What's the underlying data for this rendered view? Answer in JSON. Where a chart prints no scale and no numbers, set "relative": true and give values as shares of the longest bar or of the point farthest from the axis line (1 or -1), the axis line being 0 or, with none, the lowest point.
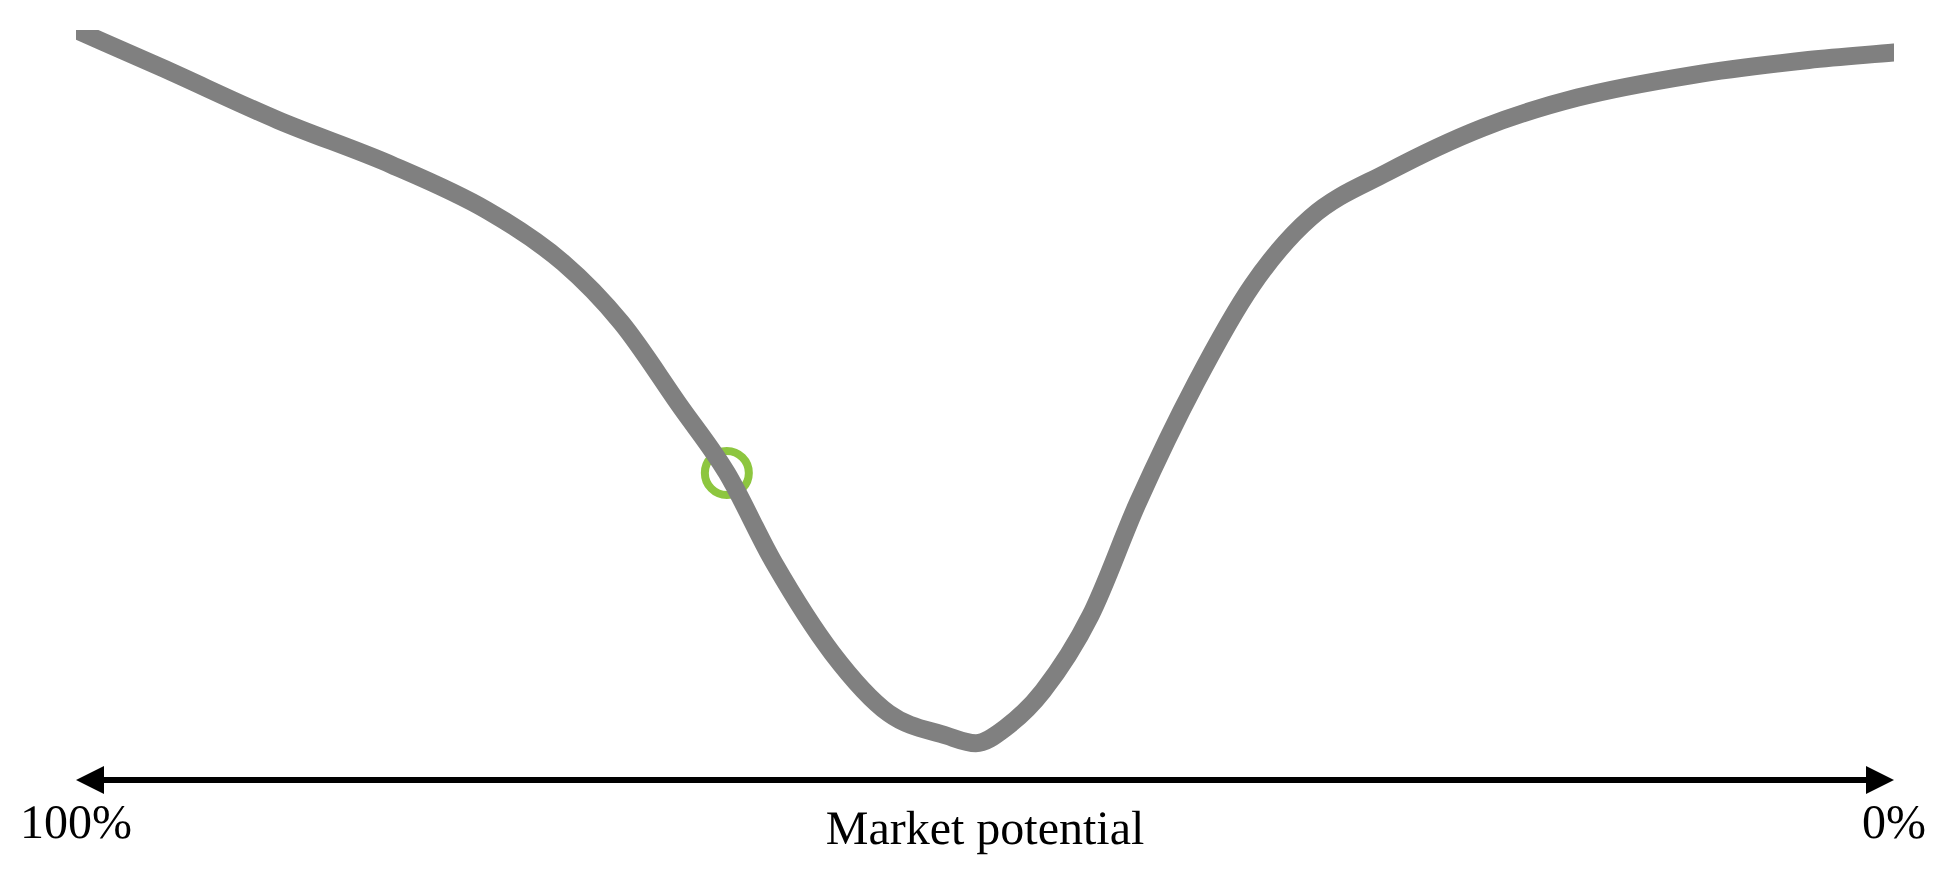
{
  "chart_data": {
    "type": "line",
    "relative": true,
    "xlabel": "Market potential",
    "xlim": [
      100,
      0
    ],
    "xticks": [
      {
        "value": 100,
        "label": "100%"
      },
      {
        "value": 0,
        "label": "0%"
      }
    ],
    "grid": false,
    "legend": false,
    "marker": "none",
    "series": [
      {
        "color": "#808080",
        "x": [
          100,
          95.3,
          88.9,
          82.6,
          77.4,
          73.2,
          70.0,
          66.8,
          64.2,
          61.6,
          58.4,
          55.3,
          52.1,
          50.5,
          48.9,
          46.8,
          44.2,
          41.6,
          38.4,
          35.3,
          32.1,
          27.9,
          22.6,
          17.4,
          11.1,
          4.7,
          0
        ],
        "values": [
          1.0,
          0.95,
          0.88,
          0.82,
          0.76,
          0.69,
          0.61,
          0.5,
          0.41,
          0.29,
          0.17,
          0.09,
          0.06,
          0.05,
          0.07,
          0.12,
          0.22,
          0.37,
          0.53,
          0.66,
          0.75,
          0.81,
          0.87,
          0.91,
          0.94,
          0.96,
          0.97
        ]
      },
      {
        "type": "scatter",
        "color": "#8dc63f",
        "marker": "circle",
        "x": [
          64.2
        ],
        "values": [
          0.41
        ]
      }
    ]
  }
}
